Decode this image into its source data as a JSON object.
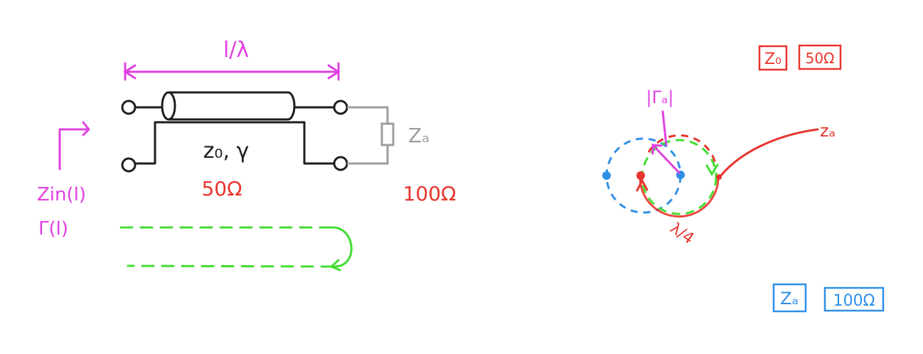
{
  "colors": {
    "magenta": "#e040e0",
    "red": "#e8352e",
    "green": "#44dd33",
    "blue": "#2f8fe6",
    "gray": "#9e9e9e",
    "black": "#1e1e1e"
  },
  "left": {
    "length_label": "l/λ",
    "line_label": "z₀, γ",
    "line_impedance": "50Ω",
    "load_label": "Zₐ",
    "load_impedance": "100Ω",
    "zin_label": "Zin(l)",
    "gamma_label": "Γ(l)"
  },
  "right": {
    "gamma_a_label": "|Γₐ|",
    "za_label": "zₐ",
    "quarter_wave_label": "λ/4",
    "z0_box": "Z₀",
    "z0_value_box": "50Ω",
    "za_box": "Zₐ",
    "za_value_box": "100Ω"
  }
}
